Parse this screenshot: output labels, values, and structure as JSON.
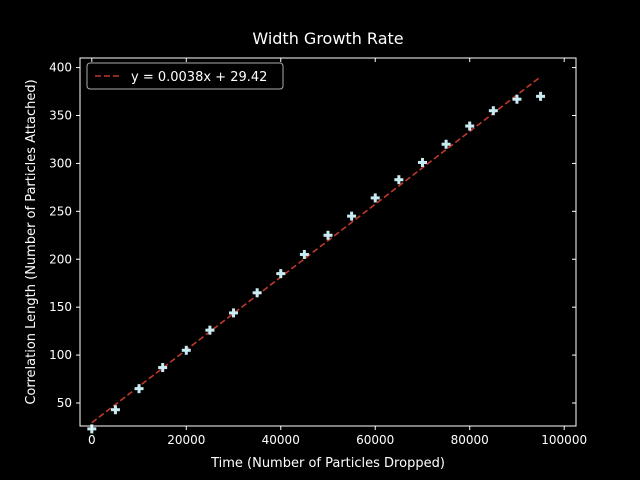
{
  "chart_data": {
    "type": "scatter",
    "title": "Width Growth Rate",
    "xlabel": "Time (Number of Particles Dropped)",
    "ylabel": "Correlation Length (Number of Particles Attached)",
    "xlim": [
      -2500,
      102500
    ],
    "ylim": [
      26,
      410
    ],
    "xticks": [
      0,
      20000,
      40000,
      60000,
      80000,
      100000
    ],
    "yticks": [
      50,
      100,
      150,
      200,
      250,
      300,
      350,
      400
    ],
    "grid": false,
    "legend_position": "top-left",
    "series": [
      {
        "kind": "points",
        "marker": "plus",
        "color": "#c8ecf2",
        "x": [
          0,
          5000,
          10000,
          15000,
          20000,
          25000,
          30000,
          35000,
          40000,
          45000,
          50000,
          55000,
          60000,
          65000,
          70000,
          75000,
          80000,
          85000,
          90000,
          95000
        ],
        "y": [
          23,
          43,
          65,
          87,
          105,
          126,
          144,
          165,
          185,
          205,
          225,
          245,
          264,
          283,
          301,
          320,
          339,
          355,
          367,
          370
        ]
      },
      {
        "kind": "fit-line",
        "name": "y = 0.0038x + 29.42",
        "color": "#c0392b",
        "style": "dashed",
        "slope": 0.0038,
        "intercept": 29.42,
        "x_range": [
          0,
          95000
        ]
      }
    ],
    "colors": {
      "background": "#000000",
      "foreground": "#ffffff"
    }
  }
}
